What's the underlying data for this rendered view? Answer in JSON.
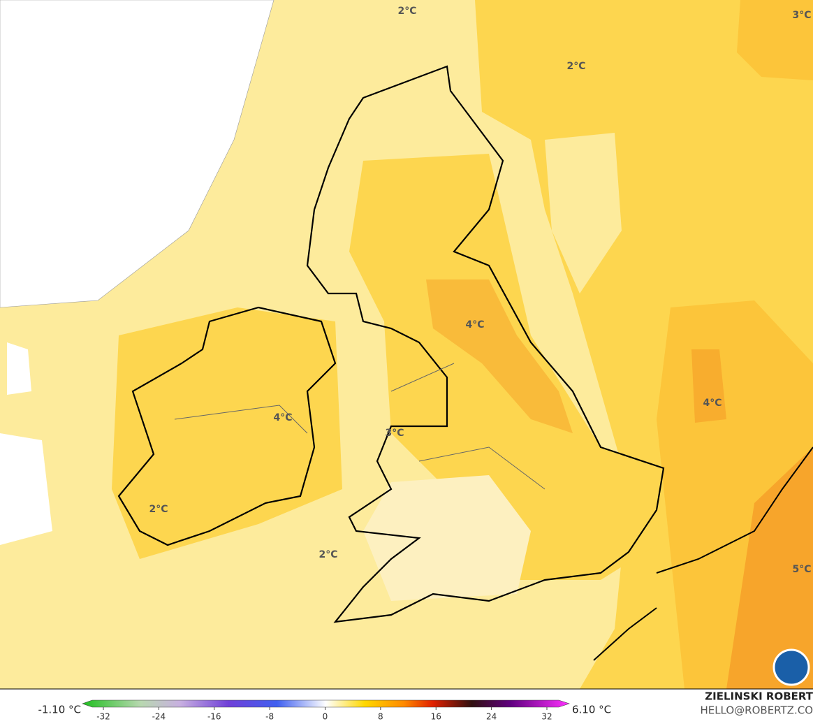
{
  "map": {
    "labels": [
      "2°C",
      "2°C",
      "3°C",
      "4°C",
      "4°C",
      "4°C",
      "3°C",
      "2°C",
      "2°C",
      "5°C"
    ]
  },
  "colorbar": {
    "min_label": "-1.10 °C",
    "max_label": "6.10 °C",
    "ticks": [
      -32,
      -24,
      -16,
      -8,
      0,
      8,
      16,
      24,
      32
    ]
  },
  "credit": {
    "name": "ZIELINSKI ROBERT",
    "email": "HELLO@ROBERTZ.CO"
  }
}
